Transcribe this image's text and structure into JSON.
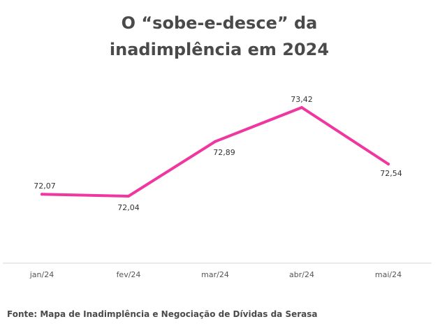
{
  "title_line1": "O “sobe-e-desce” da",
  "title_line2": "inadimplência em 2024",
  "source": "Fonte: Mapa de Inadimplência e Negociação de Dívidas da Serasa",
  "chart_data": {
    "type": "line",
    "categories": [
      "jan/24",
      "fev/24",
      "mar/24",
      "abr/24",
      "mai/24"
    ],
    "values": [
      72.07,
      72.04,
      72.89,
      73.42,
      72.54
    ],
    "value_labels": [
      "72,07",
      "72,04",
      "72,89",
      "73,42",
      "72,54"
    ],
    "line_color": "#f0369f",
    "axis_color": "#d5d5d5",
    "grid": false,
    "legend": false
  }
}
